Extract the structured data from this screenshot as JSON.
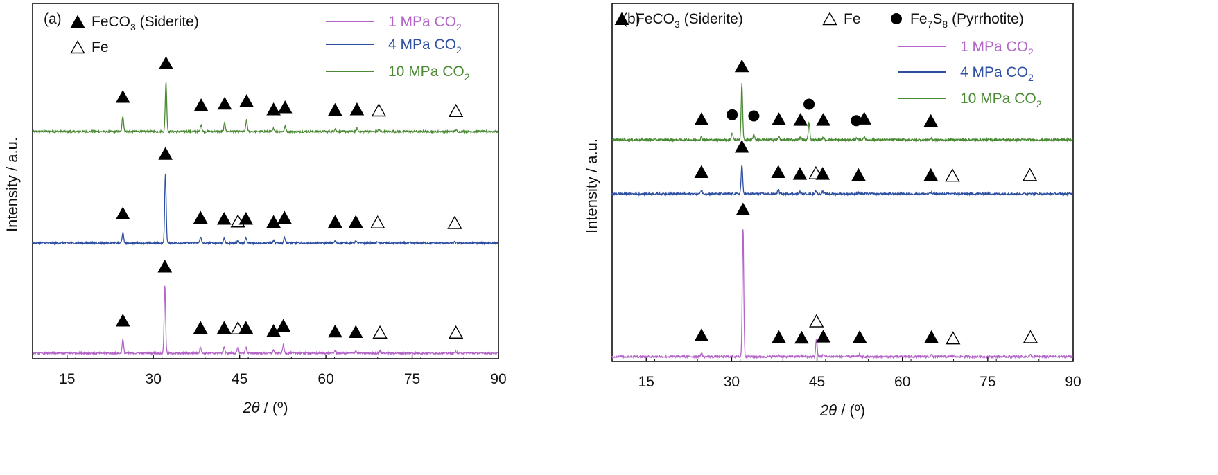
{
  "chart_data": [
    {
      "type": "line",
      "panel_label": "(a)",
      "xlabel_symbol": "2θ",
      "xlabel_unit": " / (º)",
      "ylabel": "Intensity / a.u.",
      "xlim": [
        9,
        90
      ],
      "xticks": [
        15,
        30,
        45,
        60,
        75,
        90
      ],
      "marker_legend": [
        {
          "symbol": "filled-triangle-icon",
          "label": "FeCO",
          "sub": "3",
          "suffix": " (Siderite)"
        },
        {
          "symbol": "open-triangle-icon",
          "label": "Fe",
          "sub": "",
          "suffix": ""
        }
      ],
      "series": [
        {
          "name": "10 MPa CO",
          "name_sub": "2",
          "color": "#4a8a34",
          "peaks": [
            [
              24.7,
              0.3
            ],
            [
              32.2,
              0.95
            ],
            [
              38.3,
              0.14
            ],
            [
              42.4,
              0.17
            ],
            [
              46.2,
              0.22
            ],
            [
              50.9,
              0.06
            ],
            [
              52.9,
              0.1
            ],
            [
              61.6,
              0.05
            ],
            [
              65.4,
              0.06
            ],
            [
              69.2,
              0.04
            ],
            [
              82.6,
              0.03
            ]
          ],
          "markers": [
            {
              "x": 24.7,
              "type": "filled"
            },
            {
              "x": 32.2,
              "type": "filled"
            },
            {
              "x": 38.3,
              "type": "filled"
            },
            {
              "x": 42.4,
              "type": "filled"
            },
            {
              "x": 46.2,
              "type": "filled"
            },
            {
              "x": 50.9,
              "type": "filled"
            },
            {
              "x": 52.9,
              "type": "filled"
            },
            {
              "x": 61.6,
              "type": "filled"
            },
            {
              "x": 65.4,
              "type": "filled"
            },
            {
              "x": 69.2,
              "type": "open"
            },
            {
              "x": 82.6,
              "type": "open"
            }
          ]
        },
        {
          "name": "4 MPa CO",
          "name_sub": "2",
          "color": "#2e4fa2",
          "peaks": [
            [
              24.7,
              0.2
            ],
            [
              32.1,
              1.35
            ],
            [
              38.2,
              0.12
            ],
            [
              42.3,
              0.1
            ],
            [
              44.7,
              0.05
            ],
            [
              46.1,
              0.1
            ],
            [
              50.9,
              0.04
            ],
            [
              52.8,
              0.12
            ],
            [
              61.6,
              0.04
            ],
            [
              65.2,
              0.04
            ],
            [
              69.0,
              0.03
            ],
            [
              82.4,
              0.02
            ]
          ],
          "markers": [
            {
              "x": 24.7,
              "type": "filled"
            },
            {
              "x": 32.1,
              "type": "filled"
            },
            {
              "x": 38.2,
              "type": "filled"
            },
            {
              "x": 42.3,
              "type": "filled"
            },
            {
              "x": 44.7,
              "type": "open"
            },
            {
              "x": 46.1,
              "type": "filled"
            },
            {
              "x": 50.9,
              "type": "filled"
            },
            {
              "x": 52.8,
              "type": "filled"
            },
            {
              "x": 61.6,
              "type": "filled"
            },
            {
              "x": 65.2,
              "type": "filled"
            },
            {
              "x": 69.0,
              "type": "open"
            },
            {
              "x": 82.4,
              "type": "open"
            }
          ]
        },
        {
          "name": "1 MPa CO",
          "name_sub": "2",
          "color": "#b365c8",
          "peaks": [
            [
              24.7,
              0.26
            ],
            [
              32.0,
              1.3
            ],
            [
              38.2,
              0.12
            ],
            [
              42.3,
              0.12
            ],
            [
              44.7,
              0.11
            ],
            [
              46.1,
              0.12
            ],
            [
              50.9,
              0.06
            ],
            [
              52.6,
              0.16
            ],
            [
              61.6,
              0.05
            ],
            [
              65.2,
              0.04
            ],
            [
              69.4,
              0.03
            ],
            [
              82.6,
              0.03
            ]
          ],
          "markers": [
            {
              "x": 24.7,
              "type": "filled"
            },
            {
              "x": 32.0,
              "type": "filled"
            },
            {
              "x": 38.2,
              "type": "filled"
            },
            {
              "x": 42.3,
              "type": "filled"
            },
            {
              "x": 44.7,
              "type": "open"
            },
            {
              "x": 46.1,
              "type": "filled"
            },
            {
              "x": 50.9,
              "type": "filled"
            },
            {
              "x": 52.6,
              "type": "filled"
            },
            {
              "x": 61.6,
              "type": "filled"
            },
            {
              "x": 65.2,
              "type": "filled"
            },
            {
              "x": 69.4,
              "type": "open"
            },
            {
              "x": 82.6,
              "type": "open"
            }
          ]
        }
      ]
    },
    {
      "type": "line",
      "panel_label": "(b)",
      "xlabel_symbol": "2θ",
      "xlabel_unit": " / (º)",
      "ylabel": "Intensity / a.u.",
      "xlim": [
        9,
        90
      ],
      "xticks": [
        15,
        30,
        45,
        60,
        75,
        90
      ],
      "marker_legend": [
        {
          "symbol": "filled-triangle-icon",
          "label": "FeCO",
          "sub": "3",
          "suffix": " (Siderite)"
        },
        {
          "symbol": "open-triangle-icon",
          "label": "Fe",
          "sub": "",
          "suffix": ""
        },
        {
          "symbol": "filled-circle-icon",
          "label": "Fe",
          "sub": "7",
          "mid": "S",
          "sub2": "8",
          "suffix": " (Pyrrhotite)"
        }
      ],
      "series": [
        {
          "name": "10 MPa CO",
          "name_sub": "2",
          "color": "#4a8a34",
          "peaks": [
            [
              24.7,
              0.05
            ],
            [
              30.1,
              0.12
            ],
            [
              31.8,
              0.95
            ],
            [
              33.9,
              0.1
            ],
            [
              38.3,
              0.05
            ],
            [
              42.1,
              0.04
            ],
            [
              43.6,
              0.3
            ],
            [
              46.1,
              0.04
            ],
            [
              51.9,
              0.02
            ],
            [
              53.3,
              0.06
            ],
            [
              65.0,
              0.02
            ]
          ],
          "markers": [
            {
              "x": 24.7,
              "type": "filled"
            },
            {
              "x": 30.1,
              "type": "circle"
            },
            {
              "x": 31.8,
              "type": "filled"
            },
            {
              "x": 33.9,
              "type": "circle"
            },
            {
              "x": 38.3,
              "type": "filled"
            },
            {
              "x": 42.1,
              "type": "filled"
            },
            {
              "x": 43.6,
              "type": "circle"
            },
            {
              "x": 46.1,
              "type": "filled"
            },
            {
              "x": 51.9,
              "type": "circle"
            },
            {
              "x": 53.3,
              "type": "filled"
            },
            {
              "x": 65.0,
              "type": "filled"
            }
          ]
        },
        {
          "name": "4 MPa CO",
          "name_sub": "2",
          "color": "#2e4fa2",
          "peaks": [
            [
              24.7,
              0.07
            ],
            [
              31.8,
              0.5
            ],
            [
              38.2,
              0.07
            ],
            [
              42.0,
              0.04
            ],
            [
              44.8,
              0.05
            ],
            [
              46.0,
              0.04
            ],
            [
              52.3,
              0.02
            ],
            [
              65.0,
              0.02
            ],
            [
              68.8,
              0.01
            ],
            [
              82.4,
              0.02
            ]
          ],
          "markers": [
            {
              "x": 24.7,
              "type": "filled"
            },
            {
              "x": 31.8,
              "type": "filled"
            },
            {
              "x": 38.2,
              "type": "filled"
            },
            {
              "x": 42.0,
              "type": "filled"
            },
            {
              "x": 44.8,
              "type": "open"
            },
            {
              "x": 46.0,
              "type": "filled"
            },
            {
              "x": 52.3,
              "type": "filled"
            },
            {
              "x": 65.0,
              "type": "filled"
            },
            {
              "x": 68.8,
              "type": "open"
            },
            {
              "x": 82.4,
              "type": "open"
            }
          ]
        },
        {
          "name": "1 MPa CO",
          "name_sub": "2",
          "color": "#b365c8",
          "peaks": [
            [
              24.7,
              0.06
            ],
            [
              32.0,
              2.2
            ],
            [
              38.3,
              0.03
            ],
            [
              42.3,
              0.02
            ],
            [
              44.9,
              0.3
            ],
            [
              46.1,
              0.04
            ],
            [
              52.5,
              0.03
            ],
            [
              65.1,
              0.03
            ],
            [
              68.9,
              0.01
            ],
            [
              82.5,
              0.03
            ]
          ],
          "markers": [
            {
              "x": 24.7,
              "type": "filled"
            },
            {
              "x": 32.0,
              "type": "filled"
            },
            {
              "x": 38.3,
              "type": "filled"
            },
            {
              "x": 42.3,
              "type": "filled"
            },
            {
              "x": 44.9,
              "type": "open"
            },
            {
              "x": 46.1,
              "type": "filled"
            },
            {
              "x": 52.5,
              "type": "filled"
            },
            {
              "x": 65.1,
              "type": "filled"
            },
            {
              "x": 68.9,
              "type": "open"
            },
            {
              "x": 82.5,
              "type": "open"
            }
          ]
        }
      ]
    }
  ]
}
